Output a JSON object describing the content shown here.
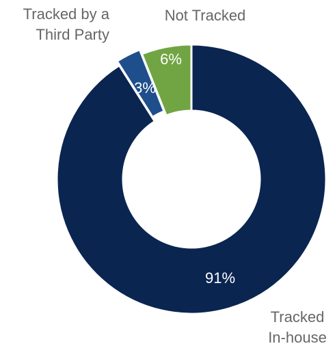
{
  "chart_data": {
    "type": "donut",
    "series": [
      {
        "name": "Tracked\nIn-house",
        "color": "#0b2551",
        "values": [
          91
        ],
        "value_labels": [
          "91%"
        ]
      },
      {
        "name": "Tracked by a\nThird Party",
        "color": "#1f4e8c",
        "values": [
          3
        ],
        "value_labels": [
          "3%"
        ]
      },
      {
        "name": "Not Tracked",
        "color": "#71a543",
        "values": [
          6
        ],
        "value_labels": [
          "6%"
        ]
      }
    ]
  }
}
